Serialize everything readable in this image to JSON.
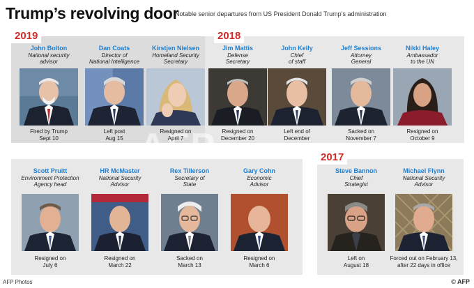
{
  "header": {
    "title": "Trump’s revolving door",
    "subtitle": "Notable senior departures from US President Donald Trump’s administration"
  },
  "years": {
    "y2019": "2019",
    "y2018": "2018",
    "y2017": "2017"
  },
  "people": {
    "bolton": {
      "name": "John Bolton",
      "role": "National security\nadvisor",
      "note": "Fired by Trump\nSept 10"
    },
    "coats": {
      "name": "Dan Coats",
      "role": "Director of\nNational Intelligence",
      "note": "Left post\nAug 15"
    },
    "nielsen": {
      "name": "Kirstjen Nielsen",
      "role": "Homeland Security\nSecretary",
      "note": "Resigned on\nApril 7"
    },
    "mattis": {
      "name": "Jim Mattis",
      "role": "Defense\nSecretary",
      "note": "Resigned on\nDecember 20"
    },
    "kelly": {
      "name": "John Kelly",
      "role": "Chief\nof staff",
      "note": "Left end of\nDecember"
    },
    "sessions": {
      "name": "Jeff Sessions",
      "role": "Attorney\nGeneral",
      "note": "Sacked on\nNovember 7"
    },
    "haley": {
      "name": "Nikki Haley",
      "role": "Ambassador\nto the UN",
      "note": "Resigned on\nOctober 9"
    },
    "pruitt": {
      "name": "Scott Pruitt",
      "role": "Environment Protection\nAgency head",
      "note": "Resigned on\nJuly 6"
    },
    "mcmaster": {
      "name": "HR McMaster",
      "role": "National Security\nAdvisor",
      "note": "Resigned on\nMarch 22"
    },
    "tillerson": {
      "name": "Rex Tillerson",
      "role": "Secretary of\nState",
      "note": "Sacked on\nMarch 13"
    },
    "cohn": {
      "name": "Gary Cohn",
      "role": "Economic\nAdvisor",
      "note": "Resigned on\nMarch 6"
    },
    "bannon": {
      "name": "Steve Bannon",
      "role": "Chief\nStrategist",
      "note": "Left on\nAugust 18"
    },
    "flynn": {
      "name": "Michael Flynn",
      "role": "National Security\nAdvisor",
      "note": "Forced out on February 13,\nafter 22 days in office"
    }
  },
  "footer": {
    "credit": "AFP Photos",
    "brand": "© AFP"
  },
  "colors": {
    "name_blue": "#1f7fd1",
    "year_red": "#d12a2a",
    "panel_grey": "#e6e6e6"
  }
}
